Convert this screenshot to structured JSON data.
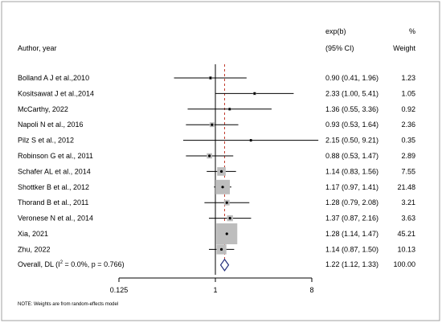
{
  "chart_data": {
    "type": "forest",
    "header": {
      "author": "Author, year",
      "effect_top": "exp(b)",
      "effect_sub": "(95% CI)",
      "weight_top": "%",
      "weight_sub": "Weight"
    },
    "studies": [
      {
        "label": "Bolland A J et al.,2010",
        "est": 0.9,
        "lo": 0.41,
        "hi": 1.96,
        "weight": 1.23,
        "ci_text": "0.90 (0.41, 1.96)",
        "weight_text": "1.23"
      },
      {
        "label": "Kositsawat J et al.,2014",
        "est": 2.33,
        "lo": 1.0,
        "hi": 5.41,
        "weight": 1.05,
        "ci_text": "2.33 (1.00, 5.41)",
        "weight_text": "1.05"
      },
      {
        "label": "McCarthy, 2022",
        "est": 1.36,
        "lo": 0.55,
        "hi": 3.36,
        "weight": 0.92,
        "ci_text": "1.36 (0.55, 3.36)",
        "weight_text": "0.92"
      },
      {
        "label": "Napoli N et al., 2016",
        "est": 0.93,
        "lo": 0.53,
        "hi": 1.64,
        "weight": 2.36,
        "ci_text": "0.93 (0.53, 1.64)",
        "weight_text": "2.36"
      },
      {
        "label": "Pilz S et al., 2012",
        "est": 2.15,
        "lo": 0.5,
        "hi": 9.21,
        "weight": 0.35,
        "ci_text": "2.15 (0.50, 9.21)",
        "weight_text": "0.35"
      },
      {
        "label": "Robinson G et al., 2011",
        "est": 0.88,
        "lo": 0.53,
        "hi": 1.47,
        "weight": 2.89,
        "ci_text": "0.88 (0.53, 1.47)",
        "weight_text": "2.89"
      },
      {
        "label": "Schafer AL et al., 2014",
        "est": 1.14,
        "lo": 0.83,
        "hi": 1.56,
        "weight": 7.55,
        "ci_text": "1.14 (0.83, 1.56)",
        "weight_text": "7.55"
      },
      {
        "label": "Shottker B et al., 2012",
        "est": 1.17,
        "lo": 0.97,
        "hi": 1.41,
        "weight": 21.48,
        "ci_text": "1.17 (0.97, 1.41)",
        "weight_text": "21.48"
      },
      {
        "label": "Thorand B et al., 2011",
        "est": 1.28,
        "lo": 0.79,
        "hi": 2.08,
        "weight": 3.21,
        "ci_text": "1.28 (0.79, 2.08)",
        "weight_text": "3.21"
      },
      {
        "label": "Veronese N et al., 2014",
        "est": 1.37,
        "lo": 0.87,
        "hi": 2.16,
        "weight": 3.63,
        "ci_text": "1.37 (0.87, 2.16)",
        "weight_text": "3.63"
      },
      {
        "label": "Xia, 2021",
        "est": 1.28,
        "lo": 1.14,
        "hi": 1.47,
        "weight": 45.21,
        "ci_text": "1.28 (1.14, 1.47)",
        "weight_text": "45.21"
      },
      {
        "label": "Zhu, 2022",
        "est": 1.14,
        "lo": 0.87,
        "hi": 1.5,
        "weight": 10.13,
        "ci_text": "1.14 (0.87, 1.50)",
        "weight_text": "10.13"
      }
    ],
    "overall": {
      "label_prefix": "Overall, DL (I",
      "label_sup": "2",
      "label_suffix": " = 0.0%, p = 0.766)",
      "est": 1.22,
      "lo": 1.12,
      "hi": 1.33,
      "ci_text": "1.22 (1.12, 1.33)",
      "weight_text": "100.00"
    },
    "x_axis": {
      "scale": "log",
      "ticks": [
        0.125,
        1,
        8
      ],
      "tick_labels": [
        "0.125",
        "1",
        "8"
      ],
      "range": [
        0.125,
        8
      ]
    },
    "reference_line": 1,
    "overall_line": 1.22,
    "note": "NOTE: Weights are from random-effects model",
    "colors": {
      "ci_line": "#000000",
      "weight_box": "#bdbdbd",
      "overall_line": "#c0392b",
      "diamond": "#1f2a78",
      "frame": "#a0a0a0"
    }
  }
}
